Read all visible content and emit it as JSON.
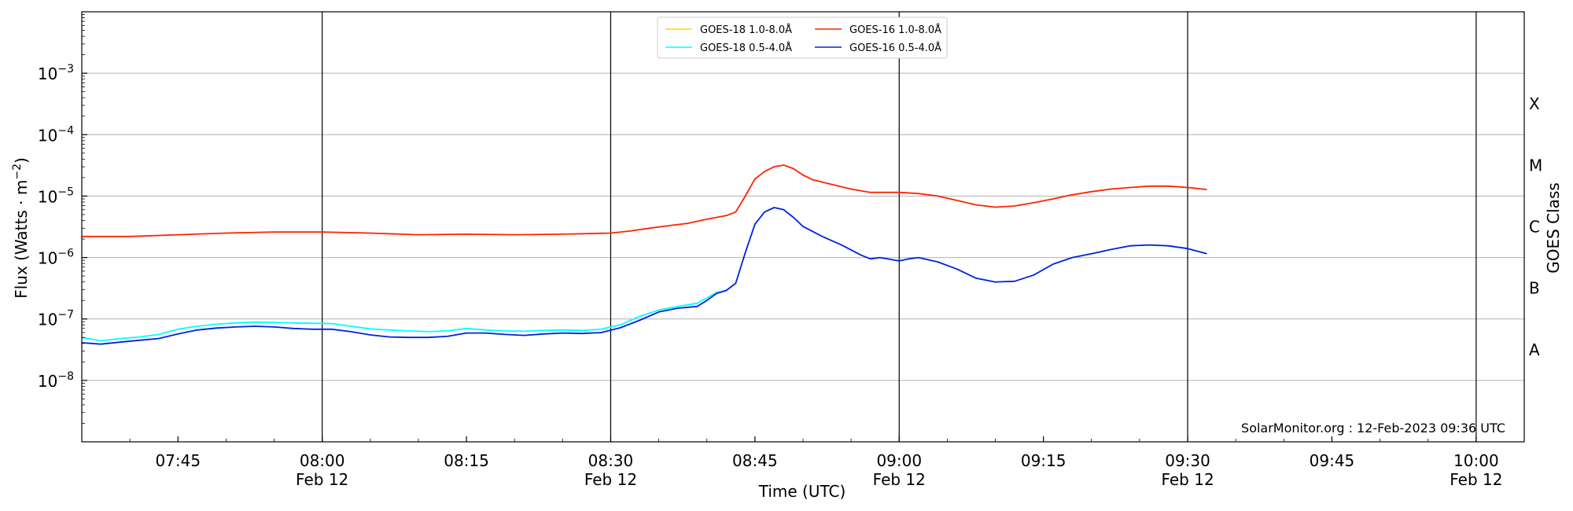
{
  "chart_data": {
    "type": "line",
    "xlabel": "Time (UTC)",
    "ylabel": "Flux (Watts · m",
    "ylabel_sup": "−2",
    "ylabel_close": ")",
    "right_label": "GOES Class",
    "ylim": [
      1e-09,
      0.01
    ],
    "y_scale": "log",
    "xlim": [
      "07:35",
      "10:05"
    ],
    "y_ticks": [
      {
        "value": 1e-08,
        "base": "10",
        "exp": "−8"
      },
      {
        "value": 1e-07,
        "base": "10",
        "exp": "−7"
      },
      {
        "value": 1e-06,
        "base": "10",
        "exp": "−6"
      },
      {
        "value": 1e-05,
        "base": "10",
        "exp": "−5"
      },
      {
        "value": 0.0001,
        "base": "10",
        "exp": "−4"
      },
      {
        "value": 0.001,
        "base": "10",
        "exp": "−3"
      }
    ],
    "x_ticks": [
      {
        "time": "07:45",
        "label": "07:45",
        "sub": ""
      },
      {
        "time": "08:00",
        "label": "08:00",
        "sub": "Feb 12"
      },
      {
        "time": "08:15",
        "label": "08:15",
        "sub": ""
      },
      {
        "time": "08:30",
        "label": "08:30",
        "sub": "Feb 12"
      },
      {
        "time": "08:45",
        "label": "08:45",
        "sub": ""
      },
      {
        "time": "09:00",
        "label": "09:00",
        "sub": "Feb 12"
      },
      {
        "time": "09:15",
        "label": "09:15",
        "sub": ""
      },
      {
        "time": "09:30",
        "label": "09:30",
        "sub": "Feb 12"
      },
      {
        "time": "09:45",
        "label": "09:45",
        "sub": ""
      },
      {
        "time": "10:00",
        "label": "10:00",
        "sub": "Feb 12"
      }
    ],
    "vertical_lines": [
      "08:00",
      "08:30",
      "09:00",
      "09:30",
      "10:00"
    ],
    "goes_classes": [
      {
        "label": "A",
        "value": 3.16e-08
      },
      {
        "label": "B",
        "value": 3.16e-07
      },
      {
        "label": "C",
        "value": 3.16e-06
      },
      {
        "label": "M",
        "value": 3.16e-05
      },
      {
        "label": "X",
        "value": 0.000316
      }
    ],
    "legend": {
      "placement": "top-center"
    },
    "grid": true,
    "footer": "SolarMonitor.org : 12-Feb-2023 09:36 UTC",
    "series": [
      {
        "name": "GOES-18 1.0-8.0Å",
        "color": "#FFD700",
        "points": []
      },
      {
        "name": "GOES-18 0.5-4.0Å",
        "color": "#00FFFF",
        "points": [
          [
            "07:35",
            5e-08
          ],
          [
            "07:37",
            4.4e-08
          ],
          [
            "07:39",
            4.8e-08
          ],
          [
            "07:41",
            5.1e-08
          ],
          [
            "07:43",
            5.6e-08
          ],
          [
            "07:45",
            6.8e-08
          ],
          [
            "07:47",
            7.6e-08
          ],
          [
            "07:49",
            8.2e-08
          ],
          [
            "07:51",
            8.6e-08
          ],
          [
            "07:53",
            8.9e-08
          ],
          [
            "07:55",
            8.8e-08
          ],
          [
            "07:57",
            8.6e-08
          ],
          [
            "07:59",
            8.5e-08
          ],
          [
            "08:01",
            8.4e-08
          ],
          [
            "08:03",
            7.6e-08
          ],
          [
            "08:05",
            6.9e-08
          ],
          [
            "08:07",
            6.6e-08
          ],
          [
            "08:09",
            6.4e-08
          ],
          [
            "08:11",
            6.2e-08
          ],
          [
            "08:13",
            6.4e-08
          ],
          [
            "08:15",
            7e-08
          ],
          [
            "08:17",
            6.6e-08
          ],
          [
            "08:19",
            6.4e-08
          ],
          [
            "08:21",
            6.3e-08
          ],
          [
            "08:23",
            6.5e-08
          ],
          [
            "08:25",
            6.6e-08
          ],
          [
            "08:27",
            6.5e-08
          ],
          [
            "08:29",
            6.8e-08
          ],
          [
            "08:31",
            8e-08
          ],
          [
            "08:33",
            1.1e-07
          ],
          [
            "08:35",
            1.4e-07
          ],
          [
            "08:37",
            1.6e-07
          ],
          [
            "08:39",
            1.8e-07
          ],
          [
            "08:40",
            2.2e-07
          ],
          [
            "08:41",
            2.7e-07
          ],
          [
            "08:42",
            2.9e-07
          ]
        ]
      },
      {
        "name": "GOES-16 1.0-8.0Å",
        "color": "#FF2200",
        "points": [
          [
            "07:35",
            2.2e-06
          ],
          [
            "07:40",
            2.2e-06
          ],
          [
            "07:45",
            2.35e-06
          ],
          [
            "07:50",
            2.5e-06
          ],
          [
            "07:55",
            2.6e-06
          ],
          [
            "08:00",
            2.6e-06
          ],
          [
            "08:05",
            2.5e-06
          ],
          [
            "08:10",
            2.35e-06
          ],
          [
            "08:15",
            2.4e-06
          ],
          [
            "08:20",
            2.35e-06
          ],
          [
            "08:25",
            2.4e-06
          ],
          [
            "08:30",
            2.5e-06
          ],
          [
            "08:32",
            2.7e-06
          ],
          [
            "08:34",
            3e-06
          ],
          [
            "08:36",
            3.3e-06
          ],
          [
            "08:38",
            3.6e-06
          ],
          [
            "08:40",
            4.2e-06
          ],
          [
            "08:42",
            4.8e-06
          ],
          [
            "08:43",
            5.5e-06
          ],
          [
            "08:44",
            1e-05
          ],
          [
            "08:45",
            1.9e-05
          ],
          [
            "08:46",
            2.5e-05
          ],
          [
            "08:47",
            3e-05
          ],
          [
            "08:48",
            3.2e-05
          ],
          [
            "08:49",
            2.8e-05
          ],
          [
            "08:50",
            2.2e-05
          ],
          [
            "08:51",
            1.85e-05
          ],
          [
            "08:53",
            1.55e-05
          ],
          [
            "08:55",
            1.3e-05
          ],
          [
            "08:57",
            1.15e-05
          ],
          [
            "09:00",
            1.15e-05
          ],
          [
            "09:02",
            1.1e-05
          ],
          [
            "09:04",
            1e-05
          ],
          [
            "09:06",
            8.5e-06
          ],
          [
            "09:08",
            7.2e-06
          ],
          [
            "09:10",
            6.6e-06
          ],
          [
            "09:12",
            6.9e-06
          ],
          [
            "09:14",
            7.8e-06
          ],
          [
            "09:16",
            9e-06
          ],
          [
            "09:18",
            1.05e-05
          ],
          [
            "09:20",
            1.18e-05
          ],
          [
            "09:22",
            1.3e-05
          ],
          [
            "09:24",
            1.38e-05
          ],
          [
            "09:26",
            1.45e-05
          ],
          [
            "09:28",
            1.45e-05
          ],
          [
            "09:30",
            1.38e-05
          ],
          [
            "09:32",
            1.28e-05
          ]
        ]
      },
      {
        "name": "GOES-16 0.5-4.0Å",
        "color": "#0022DD",
        "points": [
          [
            "07:35",
            4.1e-08
          ],
          [
            "07:37",
            3.9e-08
          ],
          [
            "07:39",
            4.2e-08
          ],
          [
            "07:41",
            4.5e-08
          ],
          [
            "07:43",
            4.8e-08
          ],
          [
            "07:45",
            5.7e-08
          ],
          [
            "07:47",
            6.6e-08
          ],
          [
            "07:49",
            7.1e-08
          ],
          [
            "07:51",
            7.4e-08
          ],
          [
            "07:53",
            7.6e-08
          ],
          [
            "07:55",
            7.4e-08
          ],
          [
            "07:57",
            7e-08
          ],
          [
            "07:59",
            6.8e-08
          ],
          [
            "08:01",
            6.8e-08
          ],
          [
            "08:03",
            6.2e-08
          ],
          [
            "08:05",
            5.5e-08
          ],
          [
            "08:07",
            5.1e-08
          ],
          [
            "08:09",
            5e-08
          ],
          [
            "08:11",
            5e-08
          ],
          [
            "08:13",
            5.2e-08
          ],
          [
            "08:15",
            5.9e-08
          ],
          [
            "08:17",
            5.9e-08
          ],
          [
            "08:19",
            5.6e-08
          ],
          [
            "08:21",
            5.4e-08
          ],
          [
            "08:23",
            5.7e-08
          ],
          [
            "08:25",
            5.9e-08
          ],
          [
            "08:27",
            5.8e-08
          ],
          [
            "08:29",
            6e-08
          ],
          [
            "08:31",
            7.2e-08
          ],
          [
            "08:33",
            9.5e-08
          ],
          [
            "08:35",
            1.3e-07
          ],
          [
            "08:37",
            1.5e-07
          ],
          [
            "08:39",
            1.6e-07
          ],
          [
            "08:40",
            2e-07
          ],
          [
            "08:41",
            2.6e-07
          ],
          [
            "08:42",
            2.9e-07
          ],
          [
            "08:43",
            3.8e-07
          ],
          [
            "08:44",
            1.2e-06
          ],
          [
            "08:45",
            3.5e-06
          ],
          [
            "08:46",
            5.5e-06
          ],
          [
            "08:47",
            6.5e-06
          ],
          [
            "08:48",
            6e-06
          ],
          [
            "08:49",
            4.5e-06
          ],
          [
            "08:50",
            3.2e-06
          ],
          [
            "08:52",
            2.2e-06
          ],
          [
            "08:54",
            1.6e-06
          ],
          [
            "08:56",
            1.1e-06
          ],
          [
            "08:57",
            9.5e-07
          ],
          [
            "08:58",
            1e-06
          ],
          [
            "09:00",
            8.8e-07
          ],
          [
            "09:01",
            9.5e-07
          ],
          [
            "09:02",
            1e-06
          ],
          [
            "09:04",
            8.5e-07
          ],
          [
            "09:06",
            6.5e-07
          ],
          [
            "09:08",
            4.6e-07
          ],
          [
            "09:10",
            4e-07
          ],
          [
            "09:12",
            4.1e-07
          ],
          [
            "09:14",
            5.2e-07
          ],
          [
            "09:16",
            7.8e-07
          ],
          [
            "09:18",
            1e-06
          ],
          [
            "09:20",
            1.15e-06
          ],
          [
            "09:22",
            1.35e-06
          ],
          [
            "09:24",
            1.55e-06
          ],
          [
            "09:26",
            1.6e-06
          ],
          [
            "09:28",
            1.55e-06
          ],
          [
            "09:30",
            1.4e-06
          ],
          [
            "09:32",
            1.15e-06
          ]
        ]
      }
    ]
  }
}
